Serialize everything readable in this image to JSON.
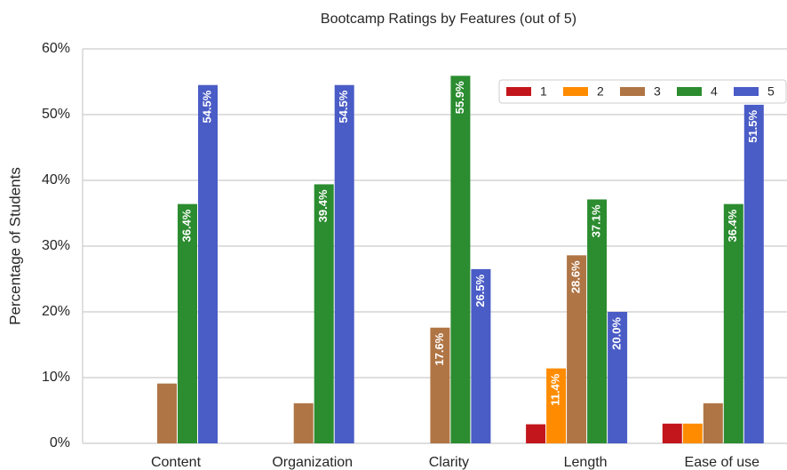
{
  "chart_data": {
    "type": "bar",
    "title": "Bootcamp Ratings by Features (out of 5)",
    "y_label": "Percentage of Students",
    "categories": [
      "Content",
      "Organization",
      "Clarity",
      "Length",
      "Ease of use"
    ],
    "series": [
      {
        "name": "1",
        "color": "#c3161c",
        "values": [
          0,
          0,
          0,
          2.9,
          3.0
        ],
        "value_labels": [
          null,
          null,
          null,
          null,
          null
        ]
      },
      {
        "name": "2",
        "color": "#ff8c00",
        "values": [
          0,
          0,
          0,
          11.4,
          3.0
        ],
        "value_labels": [
          null,
          null,
          null,
          "11.4%",
          null
        ]
      },
      {
        "name": "3",
        "color": "#b07545",
        "values": [
          9.1,
          6.1,
          17.6,
          28.6,
          6.1
        ],
        "value_labels": [
          null,
          null,
          "17.6%",
          "28.6%",
          null
        ]
      },
      {
        "name": "4",
        "color": "#2b8c30",
        "values": [
          36.4,
          39.4,
          55.9,
          37.1,
          36.4
        ],
        "value_labels": [
          "36.4%",
          "39.4%",
          "55.9%",
          "37.1%",
          "36.4%"
        ]
      },
      {
        "name": "5",
        "color": "#4a5cc6",
        "values": [
          54.5,
          54.5,
          26.5,
          20.0,
          51.5
        ],
        "value_labels": [
          "54.5%",
          "54.5%",
          "26.5%",
          "20.0%",
          "51.5%"
        ]
      }
    ],
    "ylim": [
      0,
      60
    ],
    "yticks": [
      {
        "value": 0,
        "label": "0%"
      },
      {
        "value": 10,
        "label": "10%"
      },
      {
        "value": 20,
        "label": "20%"
      },
      {
        "value": 30,
        "label": "30%"
      },
      {
        "value": 40,
        "label": "40%"
      },
      {
        "value": 50,
        "label": "50%"
      },
      {
        "value": 60,
        "label": "60%"
      }
    ],
    "grid": true,
    "legend": "upper right"
  }
}
